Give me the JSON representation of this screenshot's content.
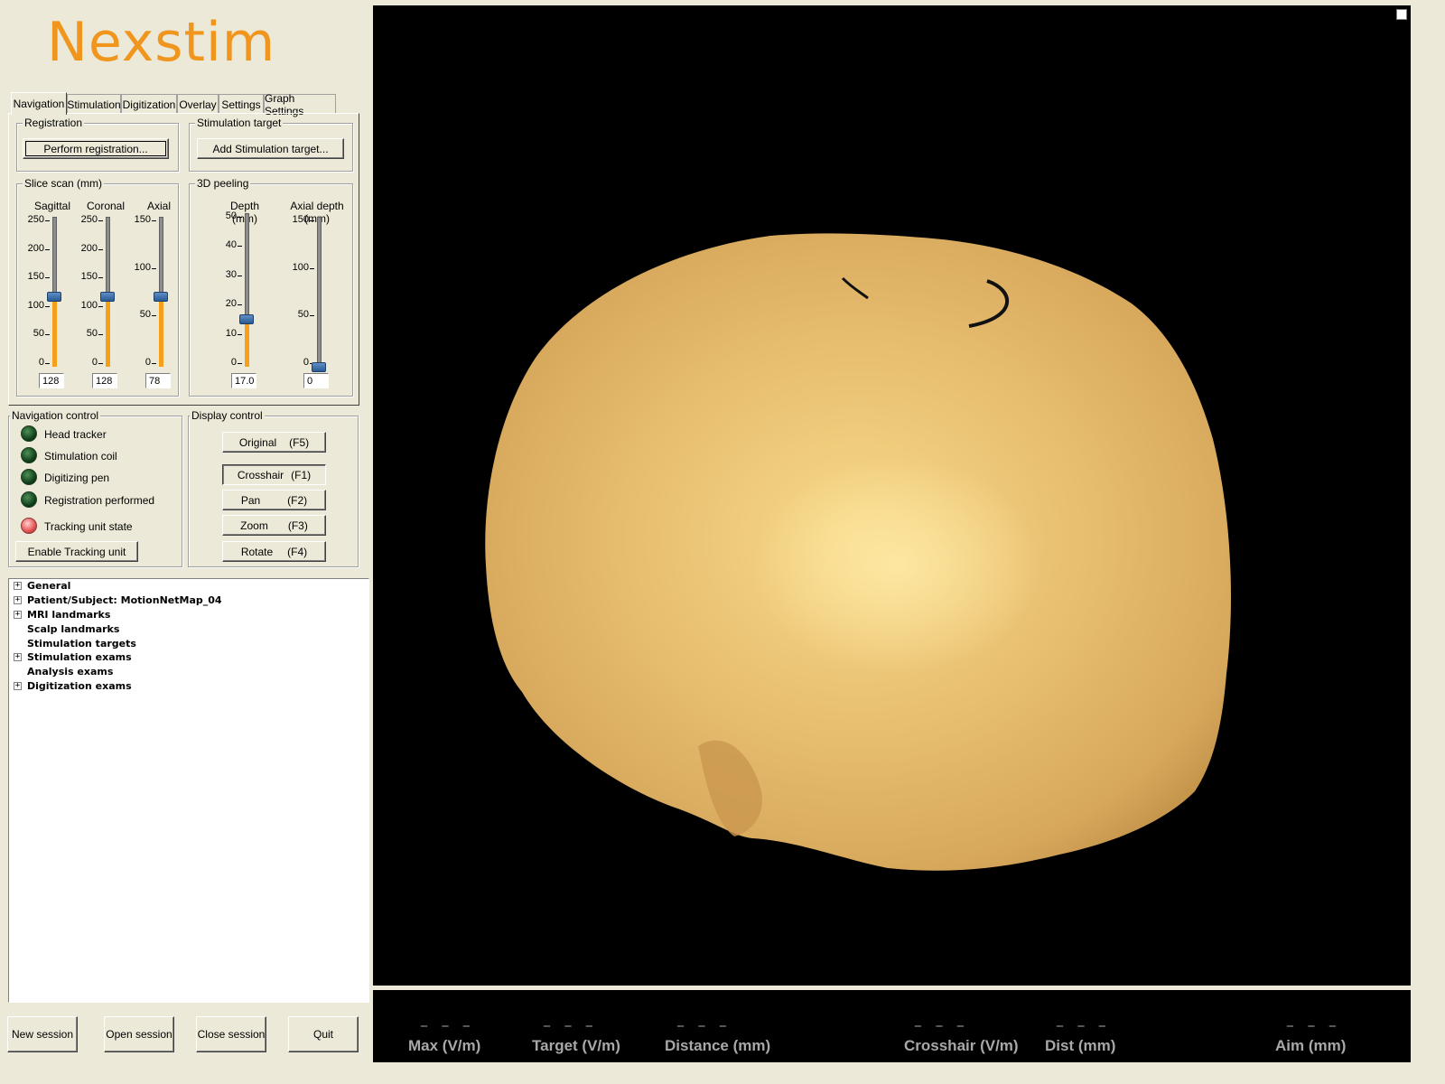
{
  "app": {
    "logo_text": "Nexstim",
    "logo_color": "#f0961e"
  },
  "tabs": [
    {
      "label": "Navigation",
      "active": true
    },
    {
      "label": "Stimulation"
    },
    {
      "label": "Digitization"
    },
    {
      "label": "Overlay"
    },
    {
      "label": "Settings"
    },
    {
      "label": "Graph Settings"
    }
  ],
  "registration": {
    "group_label": "Registration",
    "button": "Perform registration..."
  },
  "stim_target": {
    "group_label": "Stimulation target",
    "button": "Add Stimulation target..."
  },
  "slice_scan": {
    "group_label": "Slice scan (mm)",
    "sliders": [
      {
        "label": "Sagittal",
        "value": "128",
        "ticks": [
          "250",
          "200",
          "150",
          "100",
          "50",
          "0"
        ]
      },
      {
        "label": "Coronal",
        "value": "128",
        "ticks": [
          "250",
          "200",
          "150",
          "100",
          "50",
          "0"
        ]
      },
      {
        "label": "Axial",
        "value": "78",
        "ticks": [
          "150",
          "100",
          "50",
          "0"
        ]
      }
    ]
  },
  "peeling": {
    "group_label": "3D peeling",
    "sliders": [
      {
        "label": "Depth (mm)",
        "value": "17.0",
        "ticks": [
          "50",
          "40",
          "30",
          "20",
          "10",
          "0"
        ]
      },
      {
        "label": "Axial depth (mm)",
        "value": "0",
        "ticks": [
          "150",
          "100",
          "50",
          "0"
        ]
      }
    ]
  },
  "nav_control": {
    "group_label": "Navigation control",
    "items": [
      {
        "label": "Head tracker",
        "state": "off"
      },
      {
        "label": "Stimulation coil",
        "state": "off"
      },
      {
        "label": "Digitizing pen",
        "state": "off"
      },
      {
        "label": "Registration performed",
        "state": "off"
      },
      {
        "label": "Tracking unit state",
        "state": "on"
      }
    ],
    "button": "Enable Tracking unit"
  },
  "display_control": {
    "group_label": "Display control",
    "buttons": [
      {
        "label": "Original",
        "key": "(F5)"
      },
      {
        "label": "Crosshair",
        "key": "(F1)",
        "pressed": true
      },
      {
        "label": "Pan",
        "key": "(F2)"
      },
      {
        "label": "Zoom",
        "key": "(F3)"
      },
      {
        "label": "Rotate",
        "key": "(F4)"
      }
    ]
  },
  "tree": [
    {
      "label": "General",
      "expandable": true
    },
    {
      "label": "Patient/Subject: MotionNetMap_04",
      "expandable": true
    },
    {
      "label": "MRI landmarks",
      "expandable": true
    },
    {
      "label": "Scalp landmarks",
      "expandable": false
    },
    {
      "label": "Stimulation targets",
      "expandable": false
    },
    {
      "label": "Stimulation exams",
      "expandable": true
    },
    {
      "label": "Analysis exams",
      "expandable": false
    },
    {
      "label": "Digitization exams",
      "expandable": true
    }
  ],
  "session_buttons": [
    "New session",
    "Open session",
    "Close session",
    "Quit"
  ],
  "status": [
    {
      "dashes": "_ _ _",
      "label": "Max (V/m)"
    },
    {
      "dashes": "_ _ _",
      "label": "Target (V/m)"
    },
    {
      "dashes": "_ _ _",
      "label": "Distance (mm)"
    },
    {
      "dashes": "_ _ _",
      "label": "Crosshair (V/m)"
    },
    {
      "dashes": "_ _ _",
      "label": "Dist (mm)"
    },
    {
      "dashes": "_ _ _",
      "label": "Aim (mm)"
    }
  ]
}
